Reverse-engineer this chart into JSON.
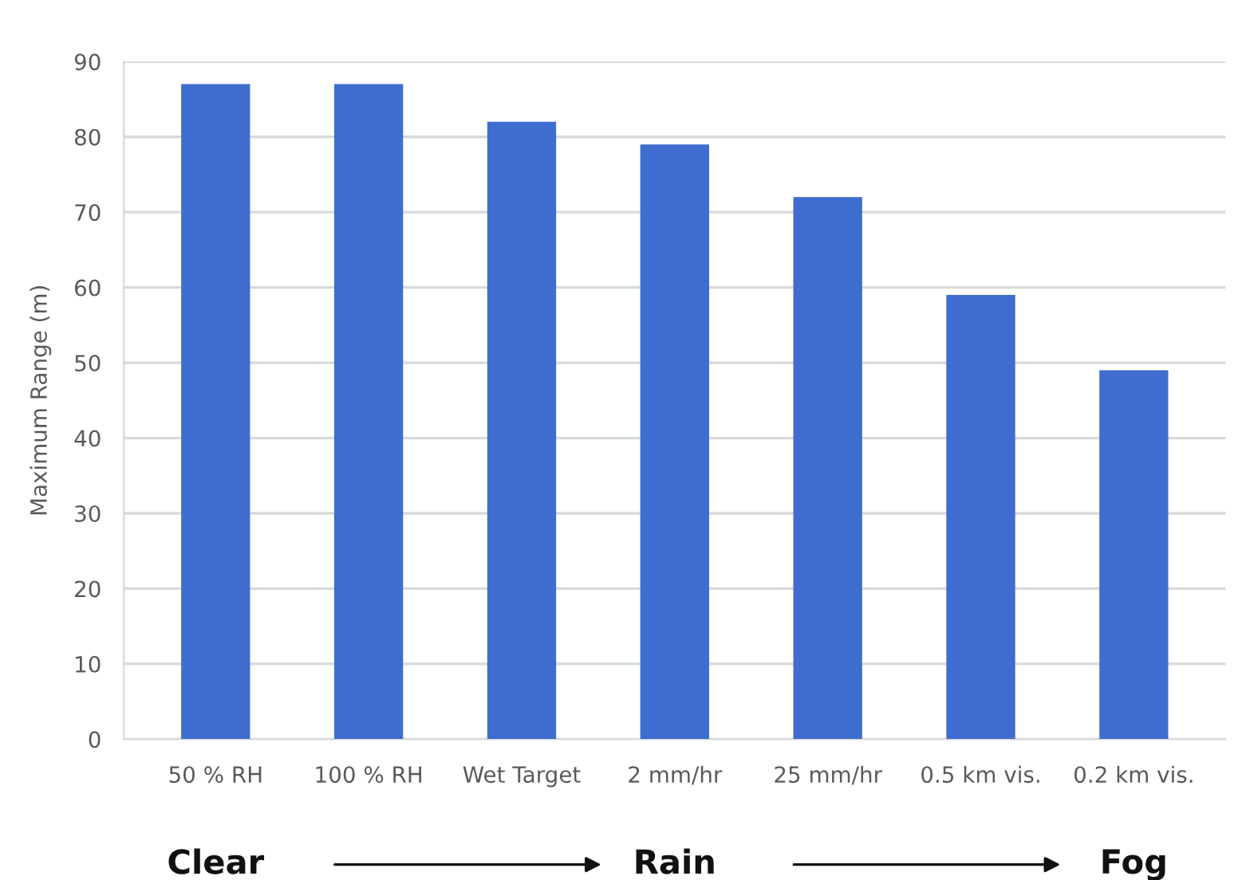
{
  "chart_data": {
    "type": "bar",
    "categories": [
      "50 % RH",
      "100 % RH",
      "Wet Target",
      "2 mm/hr",
      "25 mm/hr",
      "0.5 km vis.",
      "0.2 km vis."
    ],
    "values": [
      87,
      87,
      82,
      79,
      72,
      59,
      49
    ],
    "color": "#3e6dcf",
    "ylabel": "Maximum Range (m)",
    "ylim": [
      0,
      90
    ],
    "yticks": [
      0,
      10,
      20,
      30,
      40,
      50,
      60,
      70,
      80,
      90
    ],
    "grid": "y",
    "annotations": [
      "Clear",
      "Rain",
      "Fog"
    ]
  }
}
